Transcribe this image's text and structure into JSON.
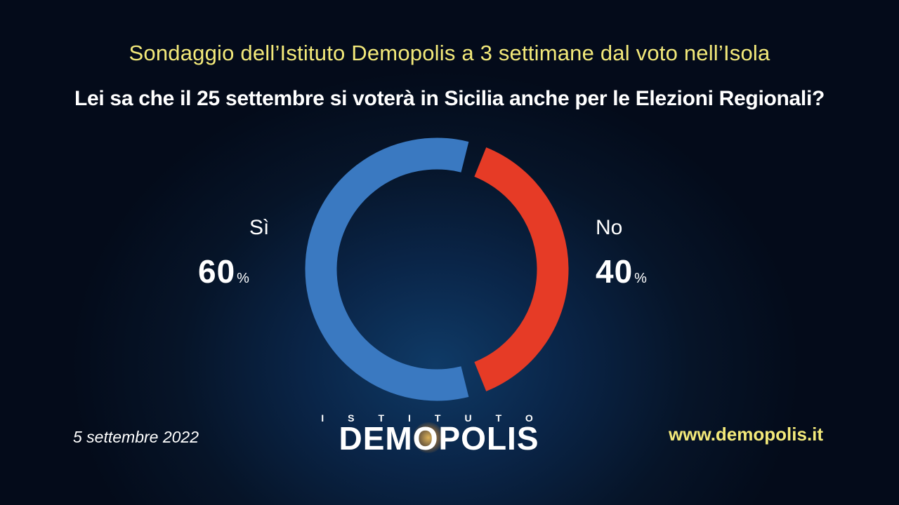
{
  "header": {
    "subtitle": "Sondaggio dell’Istituto Demopolis a 3 settimane dal voto nell’Isola",
    "question": "Lei sa che il 25 settembre si voterà in Sicilia anche per le Elezioni Regionali?"
  },
  "chart_data": {
    "type": "pie",
    "style": "donut",
    "title": "Lei sa che il 25 settembre si voterà in Sicilia anche per le Elezioni Regionali?",
    "slices": [
      {
        "label": "Sì",
        "value": 60,
        "display": "60",
        "unit": "%",
        "color": "#3a79c1"
      },
      {
        "label": "No",
        "value": 40,
        "display": "40",
        "unit": "%",
        "color": "#e63b26"
      }
    ]
  },
  "footer": {
    "date": "5 settembre 2022",
    "url": "www.demopolis.it",
    "logo_top": "ISTITUTO",
    "logo_main": "DEMOPOLIS"
  },
  "colors": {
    "subtitle": "#f3e97a",
    "url": "#f3e97a",
    "si": "#3a79c1",
    "no": "#e63b26"
  }
}
